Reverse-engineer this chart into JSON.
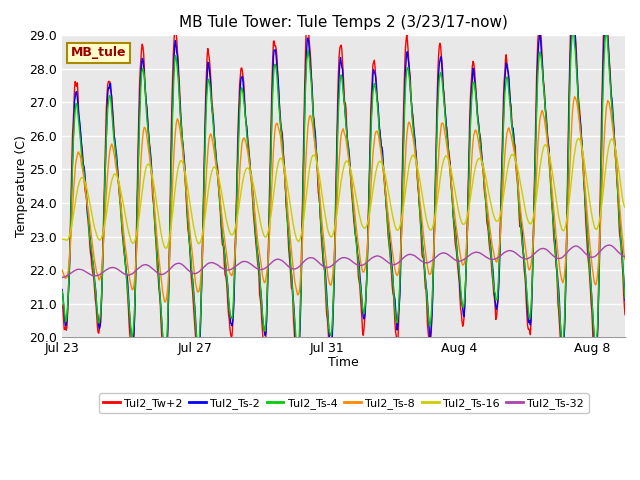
{
  "title": "MB Tule Tower: Tule Temps 2 (3/23/17-now)",
  "xlabel": "Time",
  "ylabel": "Temperature (C)",
  "ylim": [
    20.0,
    29.0
  ],
  "yticks": [
    20.0,
    21.0,
    22.0,
    23.0,
    24.0,
    25.0,
    26.0,
    27.0,
    28.0,
    29.0
  ],
  "xtick_labels": [
    "Jul 23",
    "Jul 27",
    "Jul 31",
    "Aug 4",
    "Aug 8"
  ],
  "xtick_positions": [
    0,
    4,
    8,
    12,
    16
  ],
  "plot_bg_color": "#e8e8e8",
  "fig_bg_color": "#ffffff",
  "grid_color": "#ffffff",
  "series_colors": [
    "#ff0000",
    "#0000ff",
    "#00cc00",
    "#ff8800",
    "#cccc00",
    "#aa44aa"
  ],
  "series_labels": [
    "Tul2_Tw+2",
    "Tul2_Ts-2",
    "Tul2_Ts-4",
    "Tul2_Ts-8",
    "Tul2_Ts-16",
    "Tul2_Ts-32"
  ],
  "legend_label": "MB_tule",
  "legend_bg": "#ffffcc",
  "legend_border": "#aa8800",
  "num_days": 17,
  "samples_per_day": 48
}
